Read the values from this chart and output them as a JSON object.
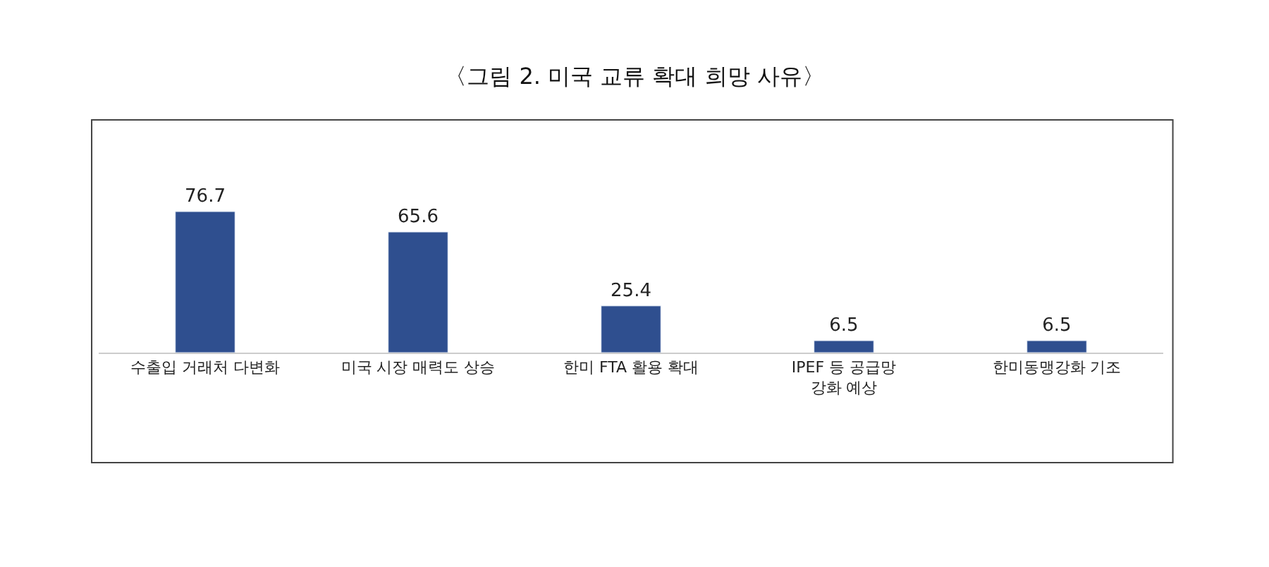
{
  "chart_data": {
    "type": "bar",
    "title": "〈그림 2. 미국 교류 확대 희망 사유〉",
    "categories": [
      "수출입 거래처 다변화",
      "미국 시장 매력도 상승",
      "한미 FTA 활용 확대",
      "IPEF 등 공급망 강화 예상",
      "한미동맹강화 기조"
    ],
    "values": [
      76.7,
      65.6,
      25.4,
      6.5,
      6.5
    ],
    "color": "#2f4f8f",
    "data_labels": true,
    "tick_labels": "x"
  }
}
